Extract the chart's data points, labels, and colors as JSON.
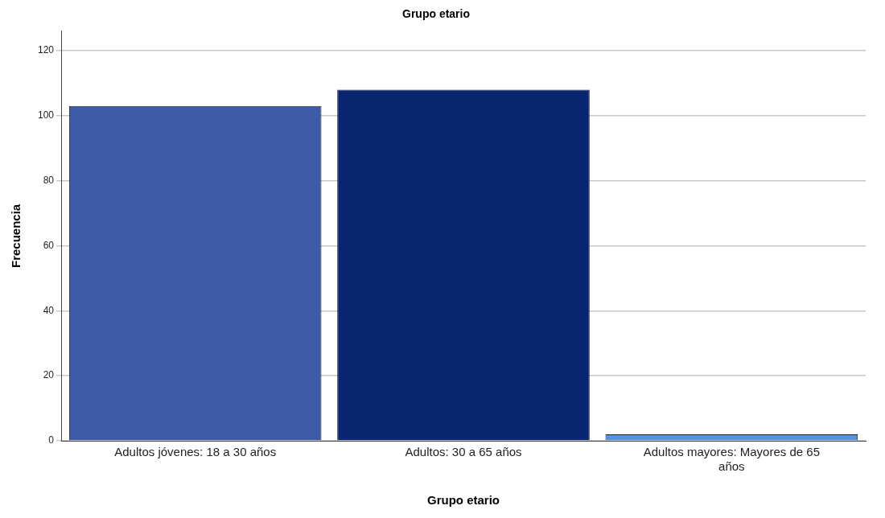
{
  "chart_data": {
    "type": "bar",
    "title": "Grupo etario",
    "xlabel": "Grupo etario",
    "ylabel": "Frecuencia",
    "categories": [
      "Adultos jóvenes: 18 a 30 años",
      "Adultos: 30 a 65 años",
      "Adultos mayores: Mayores de 65 años"
    ],
    "values": [
      103,
      108,
      2
    ],
    "colors": [
      "#3d5ba8",
      "#0a2570",
      "#5593e0"
    ],
    "ylim": [
      0,
      126
    ],
    "yticks": [
      0,
      20,
      40,
      60,
      80,
      100,
      120
    ],
    "grid": "y",
    "legend": false
  }
}
